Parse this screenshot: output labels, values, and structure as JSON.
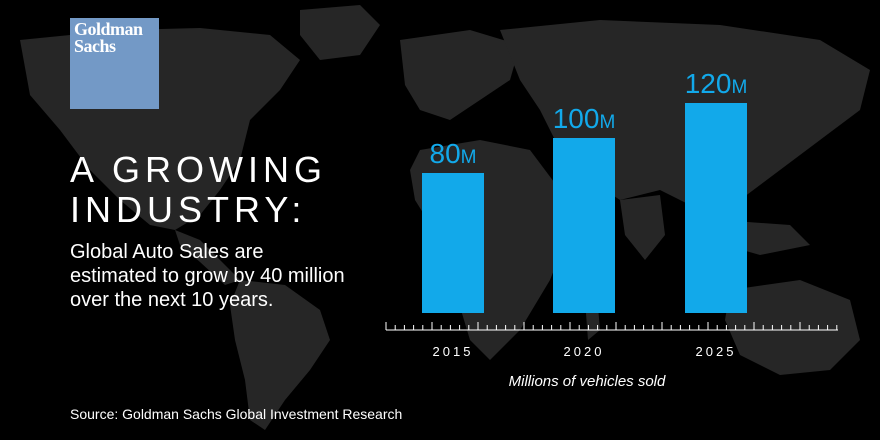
{
  "brand": {
    "logo_line1": "Goldman",
    "logo_line2": "Sachs",
    "logo_color": "#7399c6"
  },
  "headline": {
    "line1": "A GROWING",
    "line2": "INDUSTRY:"
  },
  "subtext": "Global Auto Sales are estimated to grow by 40 million over the next 10 years.",
  "source": "Source: Goldman Sachs Global Investment Research",
  "background": {
    "color": "#000000",
    "map_color": "#2a2a2a",
    "icon": "world-map-icon"
  },
  "chart_data": {
    "type": "bar",
    "categories": [
      "2015",
      "2020",
      "2025"
    ],
    "values": [
      80,
      100,
      120
    ],
    "value_labels": [
      "80",
      "100",
      "120"
    ],
    "value_unit": "M",
    "xlabel": "Millions of vehicles sold",
    "ylabel": "",
    "ylim": [
      0,
      120
    ],
    "grid": false,
    "legend": "none",
    "bar_color": "#12a9ea"
  }
}
